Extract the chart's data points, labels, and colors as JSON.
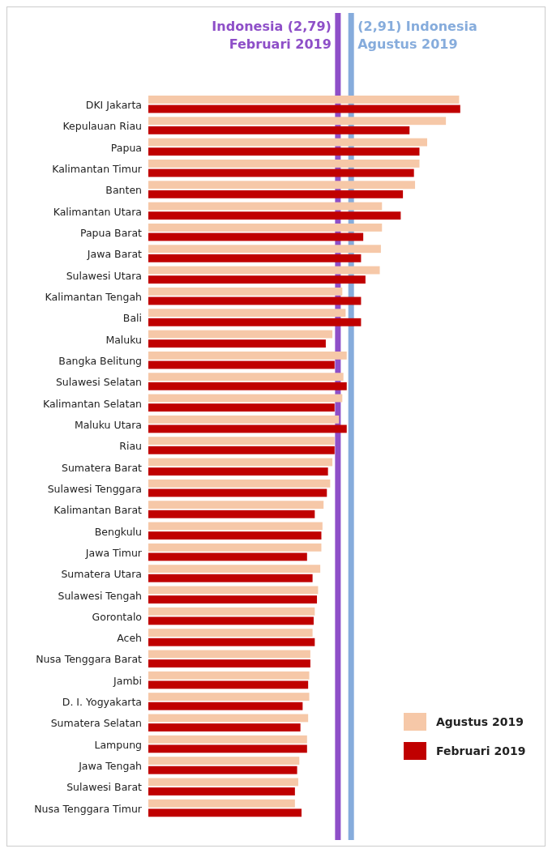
{
  "chart_data": {
    "type": "bar",
    "orientation": "horizontal",
    "categories": [
      "DKI Jakarta",
      "Kepulauan Riau",
      "Papua",
      "Kalimantan Timur",
      "Banten",
      "Kalimantan Utara",
      "Papua Barat",
      "Jawa Barat",
      "Sulawesi Utara",
      "Kalimantan Tengah",
      "Bali",
      "Maluku",
      "Bangka Belitung",
      "Sulawesi Selatan",
      "Kalimantan Selatan",
      "Maluku Utara",
      "Riau",
      "Sumatera Barat",
      "Sulawesi Tenggara",
      "Kalimantan Barat",
      "Bengkulu",
      "Jawa Timur",
      "Sumatera Utara",
      "Sulawesi Tengah",
      "Gorontalo",
      "Aceh",
      "Nusa Tenggara Barat",
      "Jambi",
      "D. I. Yogyakarta",
      "Sumatera Selatan",
      "Lampung",
      "Jawa Tengah",
      "Sulawesi Barat",
      "Nusa Tenggara Timur"
    ],
    "series": [
      {
        "name": "Agustus 2019",
        "color": "#f6c8a8",
        "values": [
          3.89,
          3.77,
          3.6,
          3.53,
          3.49,
          3.19,
          3.19,
          3.18,
          3.17,
          2.83,
          2.86,
          2.74,
          2.87,
          2.84,
          2.83,
          2.8,
          2.76,
          2.74,
          2.72,
          2.66,
          2.65,
          2.64,
          2.63,
          2.61,
          2.58,
          2.56,
          2.54,
          2.53,
          2.53,
          2.52,
          2.51,
          2.44,
          2.43,
          2.4
        ]
      },
      {
        "name": "Februari 2019",
        "color": "#c00000",
        "values": [
          3.9,
          3.44,
          3.53,
          3.48,
          3.38,
          3.36,
          3.02,
          3.0,
          3.04,
          3.0,
          3.0,
          2.68,
          2.76,
          2.87,
          2.76,
          2.87,
          2.76,
          2.7,
          2.69,
          2.58,
          2.64,
          2.51,
          2.56,
          2.6,
          2.57,
          2.58,
          2.54,
          2.52,
          2.47,
          2.45,
          2.51,
          2.42,
          2.4,
          2.46
        ]
      }
    ],
    "xlim": [
      1.07,
      4.67
    ],
    "ref_lines": [
      {
        "axis": "x",
        "value": 2.79,
        "label": "Indonesia (2,79)\nFebruari 2019",
        "color": "#8e4fc8"
      },
      {
        "axis": "x",
        "value": 2.91,
        "label": "(2,91) Indonesia\nAgustus 2019",
        "color": "#86acdc"
      }
    ],
    "tick_labels": "y",
    "legend": "bottom right"
  }
}
